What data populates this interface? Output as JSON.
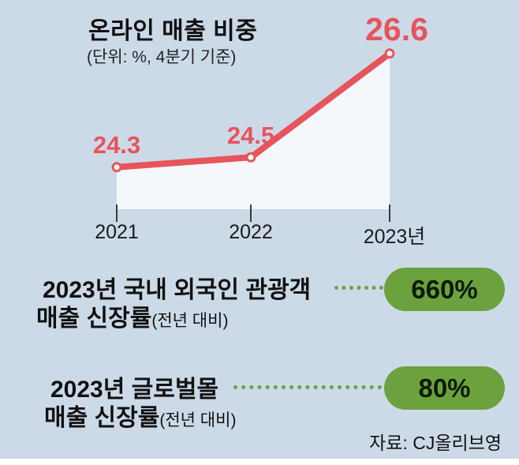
{
  "header": {
    "title": "온라인 매출 비중",
    "subtitle": "(단위: %, 4분기 기준)"
  },
  "chart_data": {
    "type": "line",
    "categories": [
      "2021",
      "2022",
      "2023년"
    ],
    "values": [
      24.3,
      24.5,
      26.6
    ],
    "value_labels": [
      "24.3",
      "24.5",
      "26.6"
    ],
    "title": "온라인 매출 비중",
    "subtitle": "(단위: %, 4분기 기준)",
    "unit": "%",
    "ylim": [
      23.45,
      27.5
    ],
    "grid": false,
    "legend": "none",
    "line_color": "#e7545b",
    "area_fill": "#f5f8fb"
  },
  "stats": [
    {
      "line1": "2023년 국내 외국인 관광객",
      "line2": "매출 신장률",
      "note": "(전년 대비)",
      "value": "660%"
    },
    {
      "line1": "2023년 글로벌몰",
      "line2": "매출 신장률",
      "note": "(전년 대비)",
      "value": "80%"
    }
  ],
  "source": {
    "text": "자료: CJ올리브영"
  },
  "colors": {
    "background": "#ccdae8",
    "red": "#e7545b",
    "green": "#6ba23e",
    "area": "#f5f8fb"
  }
}
